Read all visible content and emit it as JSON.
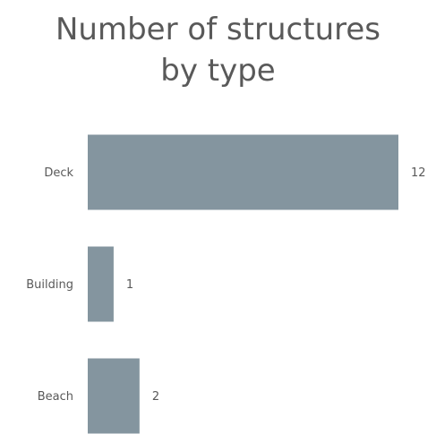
{
  "chart_data": {
    "type": "bar",
    "orientation": "horizontal",
    "title": [
      "Number of structures",
      "by type"
    ],
    "categories": [
      "Deck",
      "Building",
      "Beach"
    ],
    "values": [
      12,
      1,
      2
    ],
    "xlabel": "",
    "ylabel": "",
    "xlim": [
      0,
      12
    ],
    "grid": false,
    "legend": "none",
    "data_labels": true,
    "bar_color": "#84959f"
  }
}
